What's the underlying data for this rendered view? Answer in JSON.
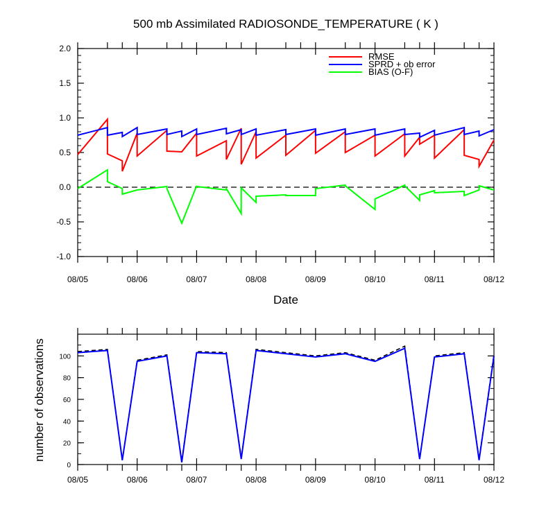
{
  "chart_data": [
    {
      "type": "line",
      "title": "500 mb Assimilated RADIOSONDE_TEMPERATURE ( K )",
      "xlabel": "Date",
      "ylabel": "",
      "ylim": [
        -1.0,
        2.0
      ],
      "yticks": [
        "2.0",
        "1.5",
        "1.0",
        "0.5",
        "0.0",
        "-0.5",
        "-1.0"
      ],
      "xticks": [
        "08/05",
        "08/06",
        "08/07",
        "08/08",
        "08/09",
        "08/10",
        "08/11",
        "08/12"
      ],
      "zero_line": "dashed",
      "legend_position": "top-right",
      "series": [
        {
          "name": "RMSE",
          "color": "#ff0000",
          "x": [
            5.0,
            5.5,
            5.5,
            5.75,
            5.75,
            6.0,
            6.0,
            6.5,
            6.5,
            6.75,
            6.75,
            7.0,
            7.0,
            7.5,
            7.5,
            7.75,
            7.75,
            8.0,
            8.0,
            8.5,
            8.5,
            9.0,
            9.0,
            9.5,
            9.5,
            10.0,
            10.0,
            10.5,
            10.5,
            10.75,
            10.75,
            11.0,
            11.0,
            11.5,
            11.5,
            11.75,
            11.75,
            12.0
          ],
          "y": [
            0.47,
            0.98,
            0.48,
            0.38,
            0.23,
            0.78,
            0.45,
            0.82,
            0.52,
            0.51,
            0.51,
            0.78,
            0.45,
            0.67,
            0.4,
            0.85,
            0.33,
            0.8,
            0.42,
            0.75,
            0.46,
            0.82,
            0.49,
            0.8,
            0.5,
            0.75,
            0.45,
            0.77,
            0.45,
            0.72,
            0.62,
            0.75,
            0.42,
            0.83,
            0.46,
            0.4,
            0.3,
            0.68
          ]
        },
        {
          "name": "SPRD + ob error",
          "color": "#0000ff",
          "x": [
            5.0,
            5.5,
            5.5,
            5.75,
            5.75,
            6.0,
            6.0,
            6.5,
            6.5,
            6.75,
            6.75,
            7.0,
            7.0,
            7.5,
            7.5,
            7.75,
            7.75,
            8.0,
            8.0,
            8.5,
            8.5,
            9.0,
            9.0,
            9.5,
            9.5,
            10.0,
            10.0,
            10.5,
            10.5,
            10.75,
            10.75,
            11.0,
            11.0,
            11.5,
            11.5,
            11.75,
            11.75,
            12.0
          ],
          "y": [
            0.75,
            0.86,
            0.75,
            0.79,
            0.73,
            0.86,
            0.76,
            0.84,
            0.76,
            0.81,
            0.73,
            0.84,
            0.76,
            0.85,
            0.77,
            0.83,
            0.76,
            0.84,
            0.75,
            0.83,
            0.76,
            0.84,
            0.75,
            0.84,
            0.76,
            0.84,
            0.75,
            0.84,
            0.76,
            0.78,
            0.72,
            0.82,
            0.75,
            0.86,
            0.76,
            0.81,
            0.74,
            0.83
          ]
        },
        {
          "name": "BIAS (O-F)",
          "color": "#00ff00",
          "x": [
            5.0,
            5.5,
            5.5,
            5.75,
            5.75,
            6.0,
            6.0,
            6.5,
            6.5,
            6.75,
            6.75,
            7.0,
            7.0,
            7.5,
            7.5,
            7.75,
            7.75,
            8.0,
            8.0,
            8.5,
            8.5,
            9.0,
            9.0,
            9.5,
            9.5,
            10.0,
            10.0,
            10.5,
            10.5,
            10.75,
            10.75,
            11.0,
            11.0,
            11.5,
            11.5,
            11.75,
            11.75,
            12.0
          ],
          "y": [
            -0.02,
            0.25,
            0.08,
            -0.02,
            -0.1,
            -0.04,
            -0.04,
            0.01,
            -0.02,
            -0.52,
            -0.52,
            0.02,
            0.01,
            -0.04,
            -0.02,
            -0.38,
            -0.01,
            -0.22,
            -0.13,
            -0.11,
            -0.12,
            -0.12,
            -0.02,
            0.03,
            0.02,
            -0.32,
            -0.17,
            0.03,
            0.02,
            -0.19,
            -0.11,
            -0.05,
            -0.08,
            -0.06,
            -0.12,
            -0.04,
            0.02,
            -0.04
          ]
        }
      ]
    },
    {
      "type": "line",
      "title": "",
      "xlabel": "",
      "ylabel": "number of observations",
      "ylim": [
        0,
        120
      ],
      "yticks": [
        "0",
        "20",
        "40",
        "60",
        "80",
        "100"
      ],
      "xticks": [
        "08/05",
        "08/06",
        "08/07",
        "08/08",
        "08/09",
        "08/10",
        "08/11",
        "08/12"
      ],
      "series": [
        {
          "style": "dashed",
          "color": "#000000",
          "x": [
            5.0,
            5.5,
            5.75,
            6.0,
            6.5,
            6.75,
            7.0,
            7.5,
            7.75,
            8.0,
            9.0,
            9.5,
            10.0,
            10.5,
            10.75,
            11.0,
            11.5,
            11.75,
            12.0
          ],
          "y": [
            104,
            106,
            4,
            96,
            101,
            3,
            104,
            103,
            6,
            106,
            100,
            103,
            96,
            109,
            5,
            100,
            103,
            5,
            101
          ]
        },
        {
          "style": "solid",
          "color": "#0000ff",
          "x": [
            5.0,
            5.5,
            5.75,
            6.0,
            6.5,
            6.75,
            7.0,
            7.5,
            7.75,
            8.0,
            9.0,
            9.5,
            10.0,
            10.5,
            10.75,
            11.0,
            11.5,
            11.75,
            12.0
          ],
          "y": [
            103,
            105,
            4,
            95,
            100,
            2,
            103,
            102,
            5,
            105,
            99,
            102,
            95,
            107,
            5,
            99,
            102,
            4,
            100
          ]
        }
      ]
    }
  ]
}
